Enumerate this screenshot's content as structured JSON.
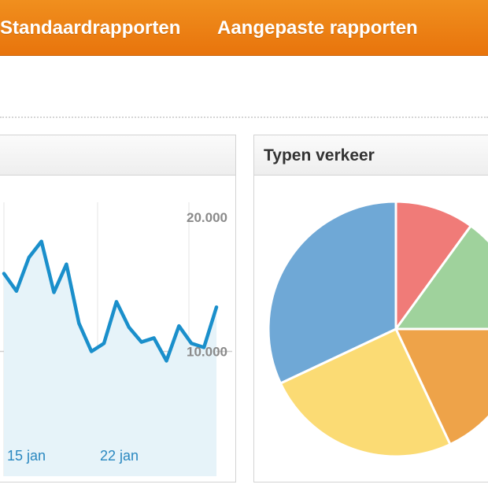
{
  "nav": {
    "items": [
      {
        "label": "Standaardrapporten"
      },
      {
        "label": "Aangepaste rapporten"
      }
    ]
  },
  "traffic_panel": {
    "title": ""
  },
  "traffic_types_panel": {
    "title": "Typen verkeer"
  },
  "colors": {
    "nav_bar": "#ee8514",
    "line": "#1a8fcb",
    "area": "#e6f3f9"
  },
  "chart_data": [
    {
      "type": "area",
      "x_tick_labels": [
        "15 jan",
        "22 jan"
      ],
      "y_tick_labels": [
        "20.000",
        "10.000"
      ],
      "ylim": [
        0,
        20000
      ],
      "grid": true,
      "series": [
        {
          "values": [
            15800,
            14500,
            17000,
            18200,
            14400,
            16500,
            12100,
            10000,
            10600,
            13700,
            11800,
            10700,
            11000,
            9300,
            11900,
            10600,
            10300,
            13300
          ]
        }
      ]
    },
    {
      "type": "pie",
      "title": "Typen verkeer",
      "slices": [
        {
          "value": 10,
          "color": "#f07b78"
        },
        {
          "value": 15,
          "color": "#9fd29c"
        },
        {
          "value": 18,
          "color": "#eea349"
        },
        {
          "value": 25,
          "color": "#fbdb74"
        },
        {
          "value": 32,
          "color": "#6fa8d6"
        }
      ]
    }
  ]
}
